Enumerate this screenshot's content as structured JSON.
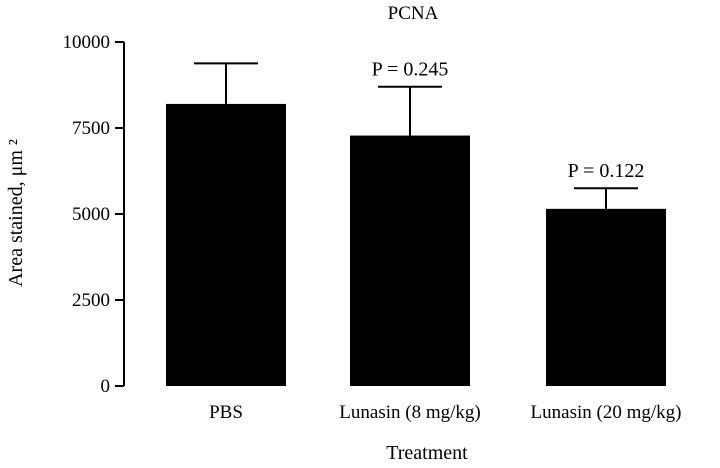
{
  "chart_data": {
    "type": "bar",
    "title": "PCNA",
    "xlabel": "Treatment",
    "ylabel": "Area stained, μm ²",
    "ylim": [
      0,
      10000
    ],
    "yticks": [
      "0",
      "2500",
      "5000",
      "7500",
      "10000"
    ],
    "categories": [
      "PBS",
      "Lunasin (8 mg/kg)",
      "Lunasin (20 mg/kg)"
    ],
    "values": [
      8200,
      7280,
      5150
    ],
    "error_upper": [
      9380,
      8700,
      5750
    ],
    "annotations": [
      "",
      "P = 0.245",
      "P = 0.122"
    ],
    "bar_color": "#000000",
    "grid": false
  }
}
